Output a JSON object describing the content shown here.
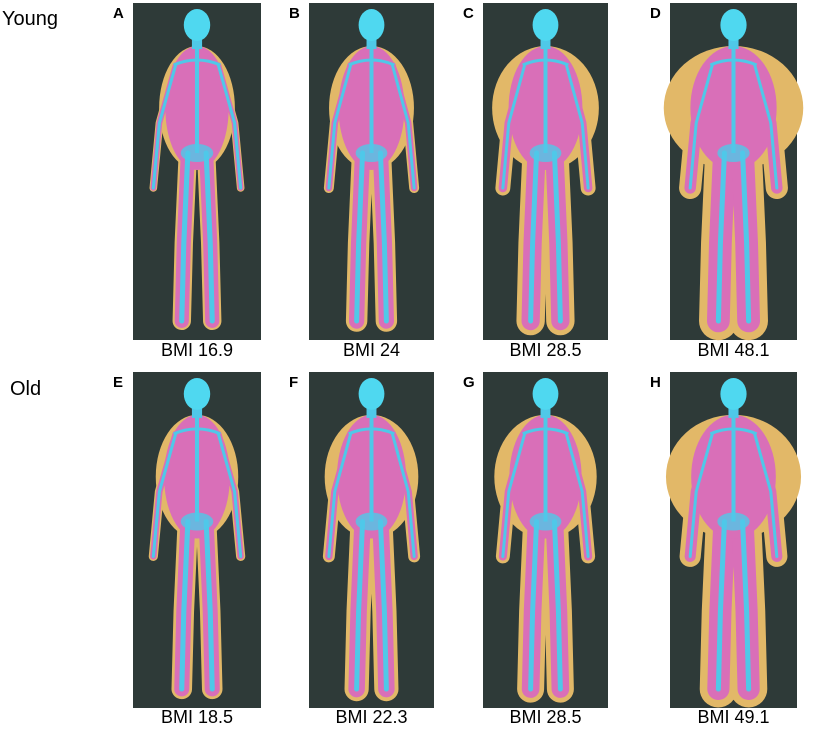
{
  "row_labels": [
    "Young",
    "Old"
  ],
  "panels": [
    {
      "letter": "A",
      "caption": "BMI 16.9"
    },
    {
      "letter": "B",
      "caption": "BMI 24"
    },
    {
      "letter": "C",
      "caption": "BMI 28.5"
    },
    {
      "letter": "D",
      "caption": "BMI 48.1"
    },
    {
      "letter": "E",
      "caption": "BMI 18.5"
    },
    {
      "letter": "F",
      "caption": "BMI 22.3"
    },
    {
      "letter": "G",
      "caption": "BMI 28.5"
    },
    {
      "letter": "H",
      "caption": "BMI 49.1"
    }
  ]
}
